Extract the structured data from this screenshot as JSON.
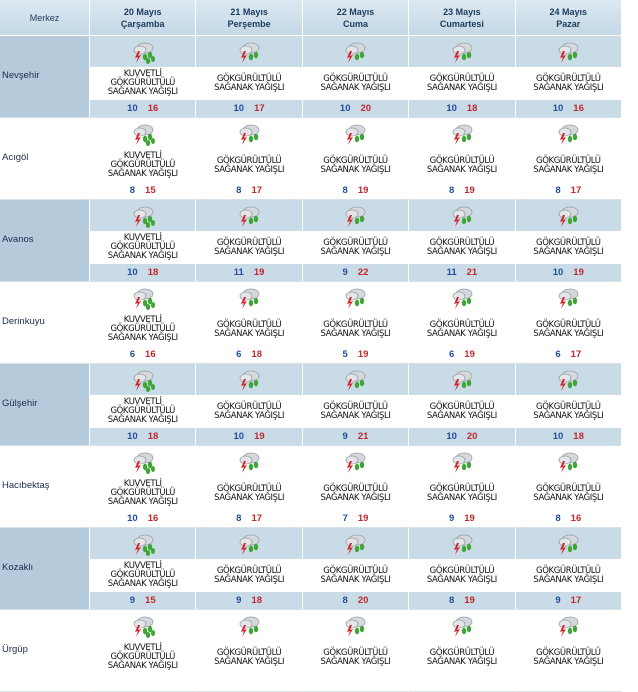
{
  "header": {
    "corner": "Merkez",
    "days": [
      {
        "date": "20 Mayıs",
        "weekday": "Çarşamba"
      },
      {
        "date": "21 Mayıs",
        "weekday": "Perşembe"
      },
      {
        "date": "22 Mayıs",
        "weekday": "Cuma"
      },
      {
        "date": "23 Mayıs",
        "weekday": "Cumartesi"
      },
      {
        "date": "24 Mayıs",
        "weekday": "Pazar"
      }
    ]
  },
  "rows": [
    {
      "name": "Nevşehir",
      "cells": [
        {
          "condition": "KUVVETLİ GÖKGÜRÜLTÜLÜ SAĞANAK YAĞIŞLI",
          "min": 10,
          "max": 16
        },
        {
          "condition": "GÖKGÜRÜLTÜLÜ SAĞANAK YAĞIŞLI",
          "min": 10,
          "max": 17
        },
        {
          "condition": "GÖKGÜRÜLTÜLÜ SAĞANAK YAĞIŞLI",
          "min": 10,
          "max": 20
        },
        {
          "condition": "GÖKGÜRÜLTÜLÜ SAĞANAK YAĞIŞLI",
          "min": 10,
          "max": 18
        },
        {
          "condition": "GÖKGÜRÜLTÜLÜ SAĞANAK YAĞIŞLI",
          "min": 10,
          "max": 16
        }
      ]
    },
    {
      "name": "Acıgöl",
      "cells": [
        {
          "condition": "KUVVETLİ GÖKGÜRÜLTÜLÜ SAĞANAK YAĞIŞLI",
          "min": 8,
          "max": 15
        },
        {
          "condition": "GÖKGÜRÜLTÜLÜ SAĞANAK YAĞIŞLI",
          "min": 8,
          "max": 17
        },
        {
          "condition": "GÖKGÜRÜLTÜLÜ SAĞANAK YAĞIŞLI",
          "min": 8,
          "max": 19
        },
        {
          "condition": "GÖKGÜRÜLTÜLÜ SAĞANAK YAĞIŞLI",
          "min": 8,
          "max": 19
        },
        {
          "condition": "GÖKGÜRÜLTÜLÜ SAĞANAK YAĞIŞLI",
          "min": 8,
          "max": 17
        }
      ]
    },
    {
      "name": "Avanos",
      "cells": [
        {
          "condition": "KUVVETLİ GÖKGÜRÜLTÜLÜ SAĞANAK YAĞIŞLI",
          "min": 10,
          "max": 18
        },
        {
          "condition": "GÖKGÜRÜLTÜLÜ SAĞANAK YAĞIŞLI",
          "min": 11,
          "max": 19
        },
        {
          "condition": "GÖKGÜRÜLTÜLÜ SAĞANAK YAĞIŞLI",
          "min": 9,
          "max": 22
        },
        {
          "condition": "GÖKGÜRÜLTÜLÜ SAĞANAK YAĞIŞLI",
          "min": 11,
          "max": 21
        },
        {
          "condition": "GÖKGÜRÜLTÜLÜ SAĞANAK YAĞIŞLI",
          "min": 10,
          "max": 19
        }
      ]
    },
    {
      "name": "Derinkuyu",
      "cells": [
        {
          "condition": "KUVVETLİ GÖKGÜRÜLTÜLÜ SAĞANAK YAĞIŞLI",
          "min": 6,
          "max": 16
        },
        {
          "condition": "GÖKGÜRÜLTÜLÜ SAĞANAK YAĞIŞLI",
          "min": 6,
          "max": 18
        },
        {
          "condition": "GÖKGÜRÜLTÜLÜ SAĞANAK YAĞIŞLI",
          "min": 5,
          "max": 19
        },
        {
          "condition": "GÖKGÜRÜLTÜLÜ SAĞANAK YAĞIŞLI",
          "min": 6,
          "max": 19
        },
        {
          "condition": "GÖKGÜRÜLTÜLÜ SAĞANAK YAĞIŞLI",
          "min": 6,
          "max": 17
        }
      ]
    },
    {
      "name": "Gülşehir",
      "cells": [
        {
          "condition": "KUVVETLİ GÖKGÜRÜLTÜLÜ SAĞANAK YAĞIŞLI",
          "min": 10,
          "max": 18
        },
        {
          "condition": "GÖKGÜRÜLTÜLÜ SAĞANAK YAĞIŞLI",
          "min": 10,
          "max": 19
        },
        {
          "condition": "GÖKGÜRÜLTÜLÜ SAĞANAK YAĞIŞLI",
          "min": 9,
          "max": 21
        },
        {
          "condition": "GÖKGÜRÜLTÜLÜ SAĞANAK YAĞIŞLI",
          "min": 10,
          "max": 20
        },
        {
          "condition": "GÖKGÜRÜLTÜLÜ SAĞANAK YAĞIŞLI",
          "min": 10,
          "max": 18
        }
      ]
    },
    {
      "name": "Hacıbektaş",
      "cells": [
        {
          "condition": "KUVVETLİ GÖKGÜRÜLTÜLÜ SAĞANAK YAĞIŞLI",
          "min": 10,
          "max": 16
        },
        {
          "condition": "GÖKGÜRÜLTÜLÜ SAĞANAK YAĞIŞLI",
          "min": 8,
          "max": 17
        },
        {
          "condition": "GÖKGÜRÜLTÜLÜ SAĞANAK YAĞIŞLI",
          "min": 7,
          "max": 19
        },
        {
          "condition": "GÖKGÜRÜLTÜLÜ SAĞANAK YAĞIŞLI",
          "min": 9,
          "max": 19
        },
        {
          "condition": "GÖKGÜRÜLTÜLÜ SAĞANAK YAĞIŞLI",
          "min": 8,
          "max": 16
        }
      ]
    },
    {
      "name": "Kozaklı",
      "cells": [
        {
          "condition": "KUVVETLİ GÖKGÜRÜLTÜLÜ SAĞANAK YAĞIŞLI",
          "min": 9,
          "max": 15
        },
        {
          "condition": "GÖKGÜRÜLTÜLÜ SAĞANAK YAĞIŞLI",
          "min": 9,
          "max": 18
        },
        {
          "condition": "GÖKGÜRÜLTÜLÜ SAĞANAK YAĞIŞLI",
          "min": 8,
          "max": 20
        },
        {
          "condition": "GÖKGÜRÜLTÜLÜ SAĞANAK YAĞIŞLI",
          "min": 8,
          "max": 19
        },
        {
          "condition": "GÖKGÜRÜLTÜLÜ SAĞANAK YAĞIŞLI",
          "min": 9,
          "max": 17
        }
      ]
    },
    {
      "name": "Ürgüp",
      "cells": [
        {
          "condition": "KUVVETLİ GÖKGÜRÜLTÜLÜ SAĞANAK YAĞIŞLI"
        },
        {
          "condition": "GÖKGÜRÜLTÜLÜ SAĞANAK YAĞIŞLI"
        },
        {
          "condition": "GÖKGÜRÜLTÜLÜ SAĞANAK YAĞIŞLI"
        },
        {
          "condition": "GÖKGÜRÜLTÜLÜ SAĞANAK YAĞIŞLI"
        },
        {
          "condition": "GÖKGÜRÜLTÜLÜ SAĞANAK YAĞIŞLI"
        }
      ]
    }
  ]
}
